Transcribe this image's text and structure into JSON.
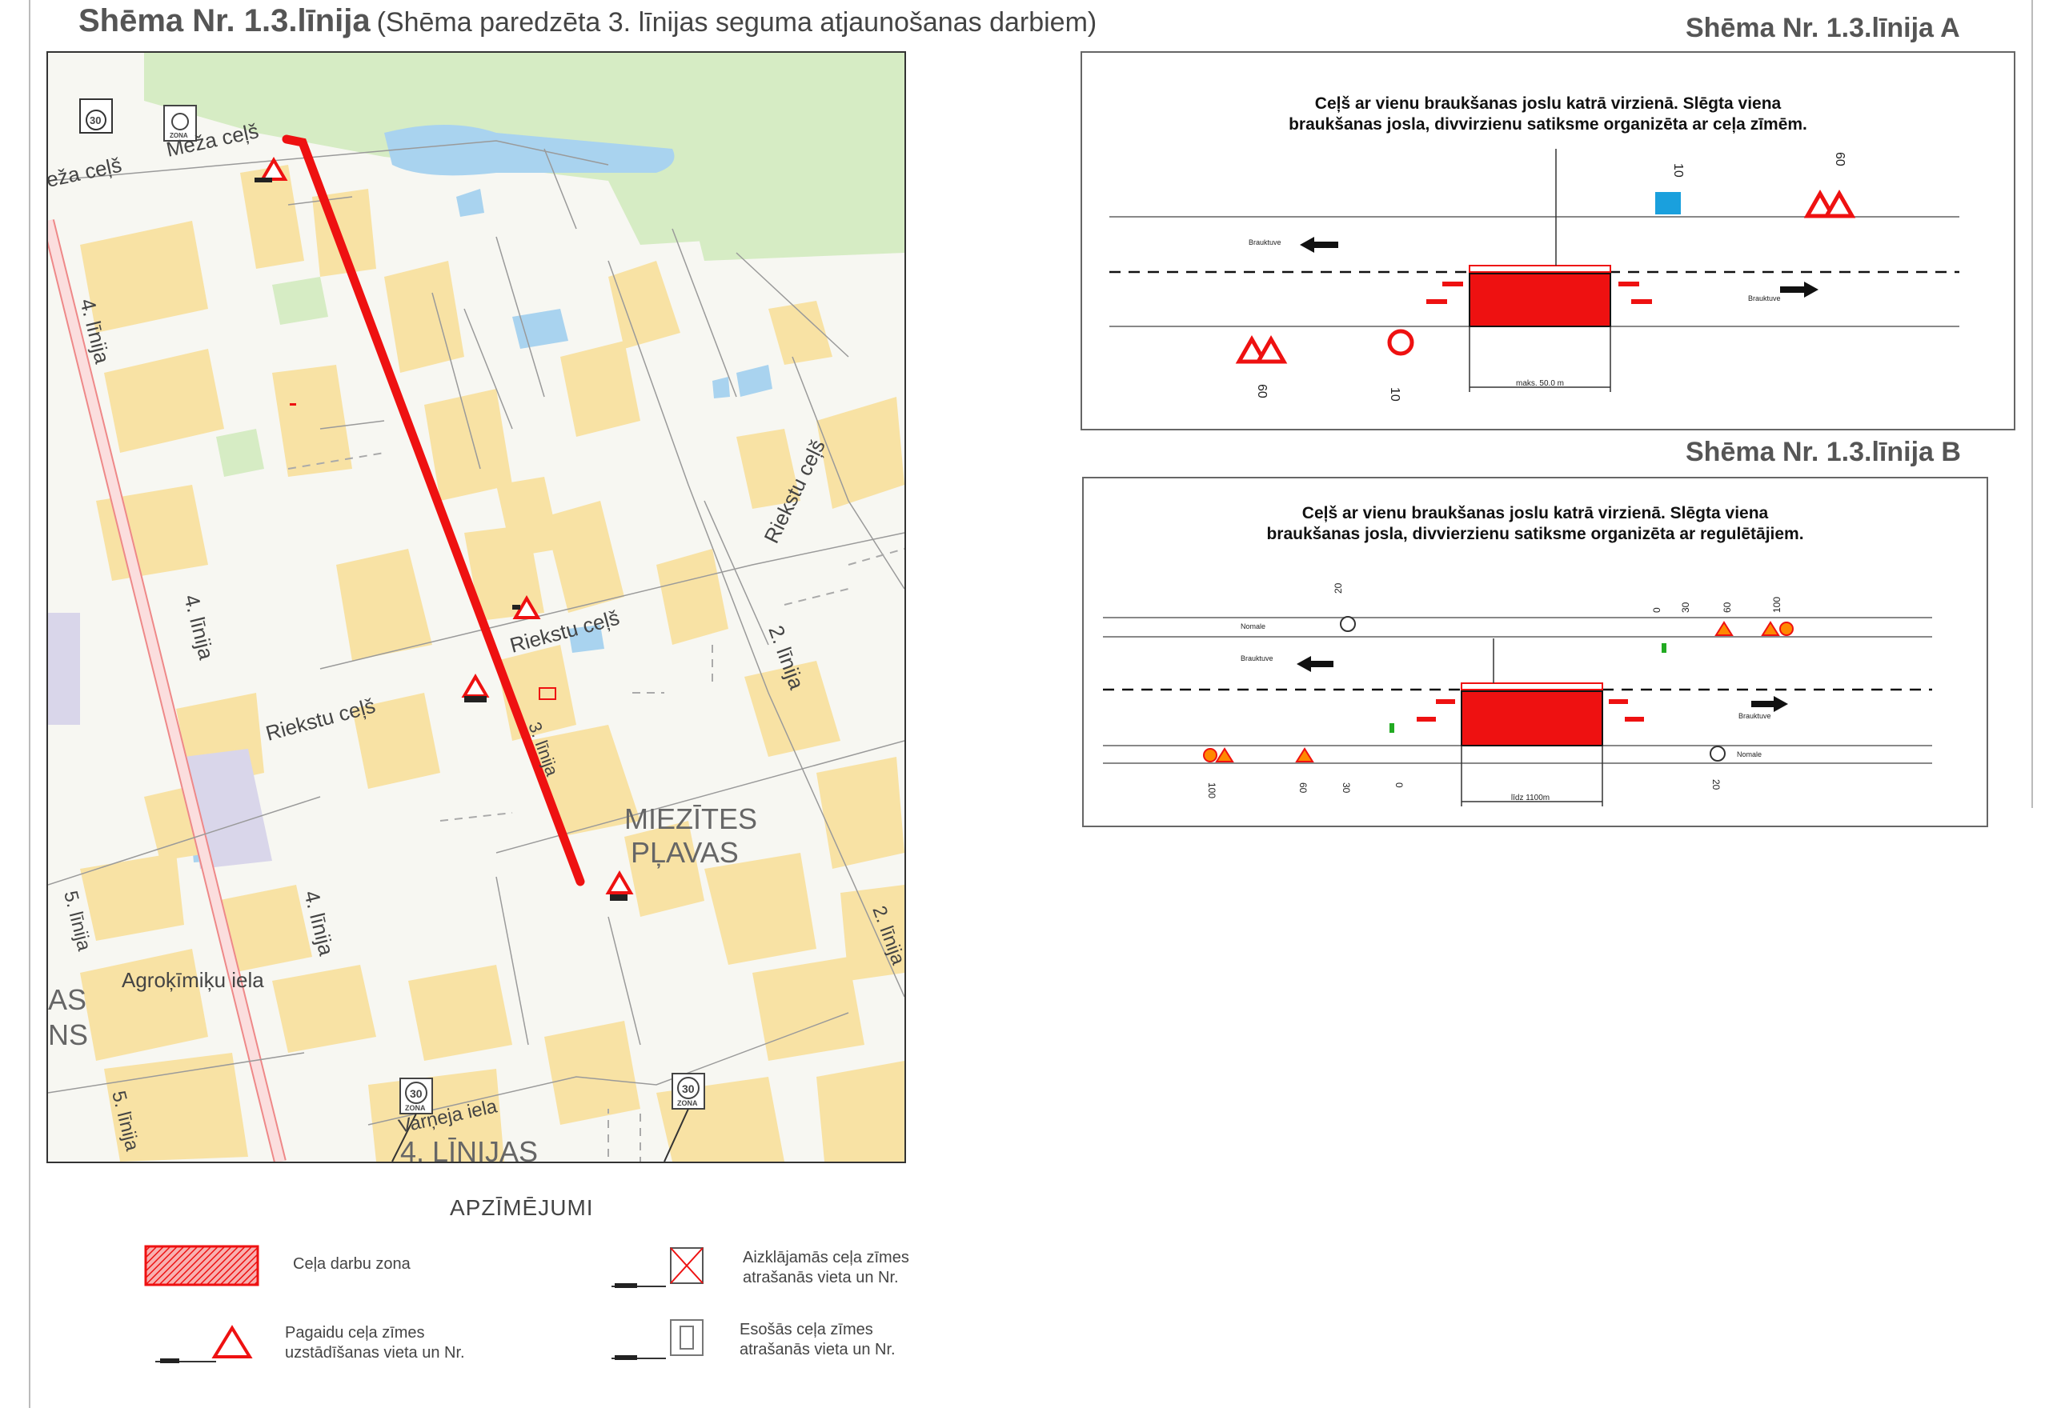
{
  "header": {
    "title": "Shēma Nr. 1.3.līnija",
    "subtitle": "(Shēma paredzēta 3. līnijas seguma atjaunošanas darbiem)"
  },
  "map": {
    "street_labels": {
      "meza_cels_1": "Meža ceļš",
      "meza_cels_2": "eža ceļš",
      "line4_a": "4. līnija",
      "line4_b": "4. līnija",
      "line4_c": "4. līnija",
      "line5_a": "5. līnija",
      "line5_b": "5. līnija",
      "riekstu_1": "Riekstu ceļš",
      "riekstu_2": "Riekstu ceļš",
      "riekstu_3": "Riekstu ceļš",
      "line2_a": "2. līnija",
      "line2_b": "2. līnija",
      "line3": "3. līnija",
      "agro": "Agroķīmiķu iela",
      "varneja": "Varņeja iela"
    },
    "place_labels": {
      "miezites_1": "MIEZĪTES",
      "miezites_2": "PĻAVAS",
      "lijas": "4. LĪNIJAS",
      "as": "AS",
      "ns": "NS"
    },
    "zone_sign_text": "ZONA",
    "speed_value": "30"
  },
  "scheme_a": {
    "label": "Shēma Nr. 1.3.līnija A",
    "description_line1": "Ceļš ar vienu braukšanas joslu katrā virzienā. Slēgta viena",
    "description_line2": "braukšanas josla, divvirzienu satiksme organizēta ar ceļa zīmēm.",
    "lane_label_top": "Brauktuve",
    "lane_label_bottom": "Brauktuve",
    "length_label": "maks. 50.0 m",
    "dist_10_top": "10",
    "dist_60_top": "60",
    "dist_60_bottom": "60",
    "dist_10_bottom": "10"
  },
  "scheme_b": {
    "label": "Shēma Nr. 1.3.līnija B",
    "description_line1": "Ceļš ar vienu braukšanas joslu katrā virzienā. Slēgta viena",
    "description_line2": "braukšanas josla, divvierzienu satiksme organizēta ar regulētājiem.",
    "normale_top": "Nomale",
    "normale_bottom": "Nomale",
    "lane_label_top": "Brauktuve",
    "lane_label_bottom": "Brauktuve",
    "length_label": "līdz 1100m",
    "dist_top": [
      "20",
      "0",
      "30",
      "60",
      "100"
    ],
    "dist_bottom": [
      "100",
      "60",
      "30",
      "0",
      "20"
    ]
  },
  "legend": {
    "title": "APZĪMĒJUMI",
    "work_zone": "Ceļa darbu zona",
    "covered_sign_1": "Aizklājamās ceļa zīmes",
    "covered_sign_2": "atrašanās vieta un Nr.",
    "temp_sign_1": "Pagaidu ceļa zīmes",
    "temp_sign_2": "uzstādīšanas vieta un Nr.",
    "existing_sign_1": "Esošās ceļa zīmes",
    "existing_sign_2": "atrašanās vieta un Nr."
  },
  "colors": {
    "route": "#ee1111",
    "building": "#f8e2a4",
    "water": "#a9d3ef",
    "green": "#d6ecc4",
    "work_zone": "#ee1111"
  }
}
